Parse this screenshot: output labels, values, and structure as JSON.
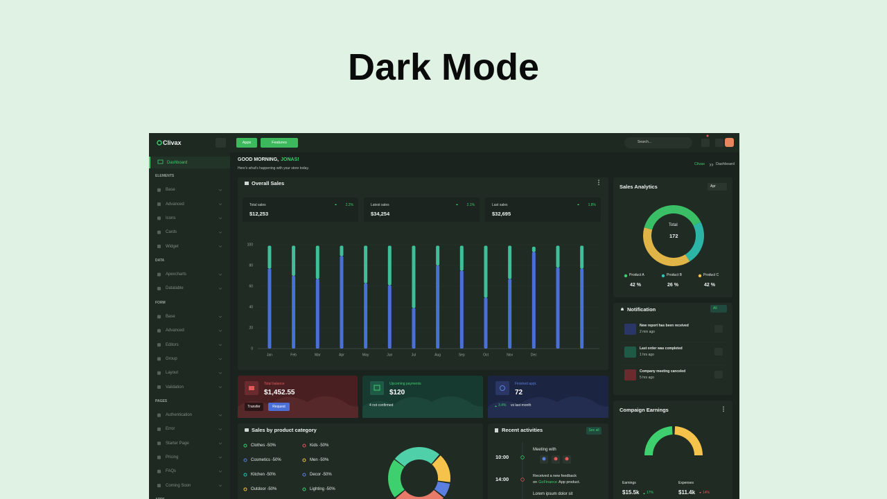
{
  "header": {
    "title": "Dark Mode"
  },
  "brand": "Clivax",
  "topbar": {
    "buttons": [
      "Apps",
      "Features"
    ],
    "search": "Search..."
  },
  "sidebar": {
    "active": "Dashboard",
    "sections": [
      {
        "title": "ELEMENTS",
        "items": [
          "Base",
          "Advanced",
          "Icons",
          "Cards",
          "Widget"
        ]
      },
      {
        "title": "DATA",
        "items": [
          "Apexcharts",
          "Datatable"
        ]
      },
      {
        "title": "FORM",
        "items": [
          "Base",
          "Advanced",
          "Editors",
          "Group",
          "Layout",
          "Validation"
        ]
      },
      {
        "title": "PAGES",
        "items": [
          "Authentication",
          "Error",
          "Starter Page",
          "Pricing",
          "FAQs",
          "Coming Soon"
        ]
      },
      {
        "title": "APPS"
      }
    ]
  },
  "greeting": {
    "text": "GOOD MORNING,",
    "name": "JONAS!",
    "sub": "Here's what's happening with your store today."
  },
  "breadcrumb": [
    "Clivax",
    "Dashboard"
  ],
  "overall_sales": {
    "title": "Overall Sales",
    "stats": [
      {
        "label": "Total sales",
        "change": "2.2%",
        "value": "$12,253"
      },
      {
        "label": "Latest sales",
        "change": "2.1%",
        "value": "$34,254"
      },
      {
        "label": "Last sales",
        "change": "1.8%",
        "value": "$32,695"
      }
    ],
    "chart": {
      "type": "bar",
      "stacked": true,
      "categories": [
        "Jan",
        "Feb",
        "Mar",
        "Apr",
        "May",
        "Jun",
        "Jul",
        "Aug",
        "Sep",
        "Oct",
        "Nov",
        "Dec",
        null,
        null
      ],
      "series": [
        {
          "color": "#4a6fd6",
          "values": [
            77,
            70,
            67,
            89,
            63,
            61,
            39,
            80,
            75,
            49,
            67,
            93,
            78,
            77
          ]
        },
        {
          "color": "#3fbf98",
          "values": [
            22,
            29,
            32,
            10,
            36,
            38,
            60,
            19,
            24,
            50,
            32,
            5,
            21,
            22
          ]
        }
      ],
      "ylim": [
        0,
        100
      ],
      "yticks": [
        0,
        20,
        40,
        60,
        80,
        100
      ],
      "grid": true
    }
  },
  "cards": [
    {
      "label": "Total balance",
      "value": "$1,452.55",
      "buttons": [
        "Transfer",
        "Request"
      ]
    },
    {
      "label": "Upcoming payments",
      "value": "$120",
      "note": "4 not confirmed"
    },
    {
      "label": "Finished appt.",
      "value": "72",
      "change": "3.4%",
      "note": "vs last month"
    }
  ],
  "sales_analytics": {
    "title": "Sales Analytics",
    "period": "Apr",
    "center_label": "Total",
    "total": 172,
    "products": [
      {
        "name": "Product A",
        "value": 42,
        "label": "42 %",
        "color": "#3ecf6e"
      },
      {
        "name": "Product B",
        "value": 26,
        "label": "26 %",
        "color": "#2ec4b6"
      },
      {
        "name": "Product C",
        "value": 42,
        "label": "42 %",
        "color": "#f5c34b"
      }
    ]
  },
  "notification": {
    "title": "Notification",
    "filter": "All",
    "items": [
      {
        "text": "New report has been received",
        "time": "2 min ago"
      },
      {
        "text": "Last order was completed",
        "time": "1 hrs ago"
      },
      {
        "text": "Company meeting canceled",
        "time": "5 hrs ago"
      }
    ]
  },
  "category_sales": {
    "title": "Sales by product category",
    "items": [
      "Clothes -50%",
      "Kids -50%",
      "Cosmetics -50%",
      "Men -50%",
      "Kitchen -50%",
      "Decor -50%",
      "Outdoor -50%",
      "Lighting -50%"
    ]
  },
  "recent": {
    "title": "Recent activities",
    "see_all": "See all",
    "items": [
      {
        "time": "10:00",
        "text": "Meeting with"
      },
      {
        "time": "14:00",
        "text": "Received a new feedback on",
        "link": "GoFinance",
        "rest": "App product."
      },
      {
        "text": "Lorem ipsum dolor sit"
      }
    ]
  },
  "campaign": {
    "title": "Compaign Earnings",
    "earnings": {
      "label": "Earnings",
      "value": "$15.5k",
      "change": "17%"
    },
    "expenses": {
      "label": "Expenses",
      "value": "$11.4k",
      "change": "14%"
    }
  }
}
